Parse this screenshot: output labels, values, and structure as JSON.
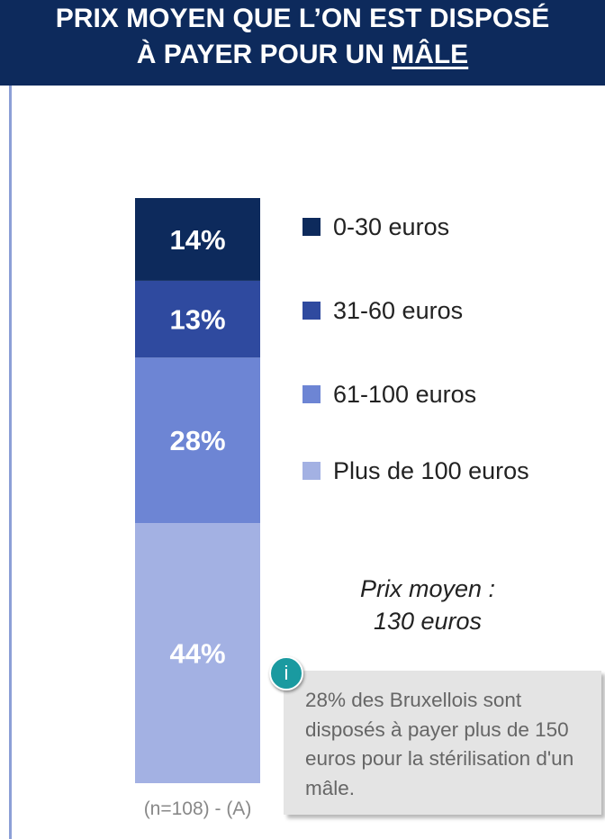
{
  "chart_data": {
    "type": "stacked_bar",
    "title_line1": "PRIX MOYEN QUE L’ON EST DISPOSÉ",
    "title_line2": "À PAYER POUR UN",
    "title_emphasis": "MÂLE",
    "series": [
      {
        "name": "0-30 euros",
        "color": "#0d2a5c",
        "values": [
          14
        ],
        "value_labels": [
          "14%"
        ]
      },
      {
        "name": "31-60 euros",
        "color": "#2f4a9f",
        "values": [
          13
        ],
        "value_labels": [
          "13%"
        ]
      },
      {
        "name": "61-100 euros",
        "color": "#6d85d4",
        "values": [
          28
        ],
        "value_labels": [
          "28%"
        ]
      },
      {
        "name": "Plus de 100 euros",
        "color": "#a3b1e3",
        "values": [
          44
        ],
        "value_labels": [
          "44%"
        ]
      }
    ],
    "annotation": [
      "Prix moyen :",
      "130 euros"
    ],
    "info_icon": "i",
    "info_text": "28% des Bruxellois sont disposés à payer plus de 150 euros pour la stérilisation d'un mâle.",
    "footnote": "(n=108) - (A)"
  }
}
